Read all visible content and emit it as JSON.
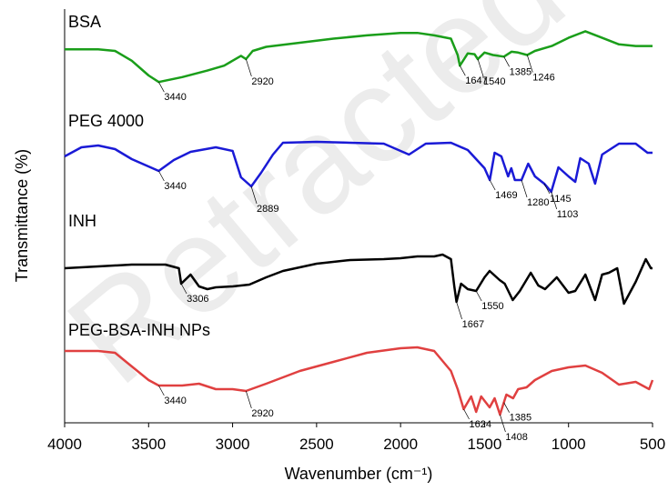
{
  "chart_data": {
    "type": "line",
    "xlabel": "Wavenumber (cm⁻¹)",
    "ylabel": "Transmittance (%)",
    "xlim": [
      4000,
      500
    ],
    "x_ticks": [
      4000,
      3500,
      3000,
      2500,
      2000,
      1500,
      1000,
      500
    ],
    "grid": false,
    "legend": "none",
    "series": [
      {
        "name": "BSA",
        "color": "#1a9e1a",
        "points": [
          [
            4000,
            0.08
          ],
          [
            3800,
            0.08
          ],
          [
            3700,
            0.1
          ],
          [
            3600,
            0.22
          ],
          [
            3500,
            0.4
          ],
          [
            3440,
            0.48
          ],
          [
            3300,
            0.42
          ],
          [
            3150,
            0.34
          ],
          [
            3050,
            0.28
          ],
          [
            2950,
            0.16
          ],
          [
            2920,
            0.2
          ],
          [
            2880,
            0.1
          ],
          [
            2800,
            0.05
          ],
          [
            2600,
            0.0
          ],
          [
            2400,
            -0.05
          ],
          [
            2200,
            -0.09
          ],
          [
            2000,
            -0.12
          ],
          [
            1900,
            -0.12
          ],
          [
            1800,
            -0.09
          ],
          [
            1700,
            -0.05
          ],
          [
            1660,
            0.15
          ],
          [
            1647,
            0.28
          ],
          [
            1600,
            0.13
          ],
          [
            1560,
            0.14
          ],
          [
            1540,
            0.2
          ],
          [
            1500,
            0.12
          ],
          [
            1450,
            0.15
          ],
          [
            1385,
            0.17
          ],
          [
            1340,
            0.11
          ],
          [
            1300,
            0.12
          ],
          [
            1246,
            0.15
          ],
          [
            1200,
            0.1
          ],
          [
            1100,
            0.04
          ],
          [
            1000,
            -0.06
          ],
          [
            900,
            -0.14
          ],
          [
            800,
            -0.06
          ],
          [
            700,
            0.02
          ],
          [
            600,
            0.04
          ],
          [
            500,
            0.04
          ]
        ],
        "annotations": [
          {
            "x": 3440,
            "label": "3440"
          },
          {
            "x": 2920,
            "label": "2920"
          },
          {
            "x": 1647,
            "label": "1647"
          },
          {
            "x": 1540,
            "label": "1540"
          },
          {
            "x": 1385,
            "label": "1385"
          },
          {
            "x": 1246,
            "label": "1246"
          }
        ]
      },
      {
        "name": "PEG 4000",
        "color": "#1a1ad6",
        "points": [
          [
            4000,
            0.12
          ],
          [
            3900,
            0.02
          ],
          [
            3800,
            0.0
          ],
          [
            3700,
            0.04
          ],
          [
            3600,
            0.15
          ],
          [
            3440,
            0.28
          ],
          [
            3350,
            0.16
          ],
          [
            3250,
            0.07
          ],
          [
            3100,
            0.02
          ],
          [
            3000,
            0.06
          ],
          [
            2950,
            0.35
          ],
          [
            2889,
            0.45
          ],
          [
            2830,
            0.3
          ],
          [
            2760,
            0.1
          ],
          [
            2700,
            -0.03
          ],
          [
            2500,
            -0.04
          ],
          [
            2300,
            -0.03
          ],
          [
            2100,
            -0.02
          ],
          [
            1950,
            0.1
          ],
          [
            1850,
            -0.02
          ],
          [
            1700,
            -0.03
          ],
          [
            1600,
            0.05
          ],
          [
            1500,
            0.25
          ],
          [
            1469,
            0.38
          ],
          [
            1440,
            0.08
          ],
          [
            1400,
            0.12
          ],
          [
            1360,
            0.34
          ],
          [
            1341,
            0.25
          ],
          [
            1320,
            0.38
          ],
          [
            1280,
            0.38
          ],
          [
            1240,
            0.2
          ],
          [
            1200,
            0.34
          ],
          [
            1145,
            0.42
          ],
          [
            1103,
            0.51
          ],
          [
            1060,
            0.24
          ],
          [
            1000,
            0.34
          ],
          [
            960,
            0.4
          ],
          [
            930,
            0.14
          ],
          [
            880,
            0.2
          ],
          [
            842,
            0.42
          ],
          [
            800,
            0.1
          ],
          [
            700,
            -0.02
          ],
          [
            600,
            -0.02
          ],
          [
            530,
            0.08
          ],
          [
            500,
            0.08
          ]
        ],
        "annotations": [
          {
            "x": 3440,
            "label": "3440"
          },
          {
            "x": 2889,
            "label": "2889"
          },
          {
            "x": 1469,
            "label": "1469"
          },
          {
            "x": 1280,
            "label": "1280"
          },
          {
            "x": 1145,
            "label": "1145"
          },
          {
            "x": 1103,
            "label": "1103"
          }
        ]
      },
      {
        "name": "INH",
        "color": "#000000",
        "points": [
          [
            4000,
            0.05
          ],
          [
            3800,
            0.03
          ],
          [
            3600,
            0.01
          ],
          [
            3400,
            0.01
          ],
          [
            3320,
            0.05
          ],
          [
            3306,
            0.22
          ],
          [
            3250,
            0.12
          ],
          [
            3200,
            0.25
          ],
          [
            3150,
            0.28
          ],
          [
            3100,
            0.26
          ],
          [
            3000,
            0.25
          ],
          [
            2900,
            0.23
          ],
          [
            2800,
            0.15
          ],
          [
            2700,
            0.08
          ],
          [
            2500,
            0.0
          ],
          [
            2300,
            -0.04
          ],
          [
            2100,
            -0.05
          ],
          [
            2000,
            -0.06
          ],
          [
            1900,
            -0.08
          ],
          [
            1800,
            -0.08
          ],
          [
            1750,
            -0.1
          ],
          [
            1700,
            -0.05
          ],
          [
            1680,
            0.25
          ],
          [
            1667,
            0.42
          ],
          [
            1640,
            0.22
          ],
          [
            1600,
            0.28
          ],
          [
            1550,
            0.3
          ],
          [
            1500,
            0.15
          ],
          [
            1470,
            0.08
          ],
          [
            1410,
            0.18
          ],
          [
            1380,
            0.22
          ],
          [
            1332,
            0.4
          ],
          [
            1290,
            0.3
          ],
          [
            1225,
            0.1
          ],
          [
            1180,
            0.24
          ],
          [
            1140,
            0.28
          ],
          [
            1070,
            0.15
          ],
          [
            1000,
            0.32
          ],
          [
            960,
            0.3
          ],
          [
            900,
            0.12
          ],
          [
            842,
            0.4
          ],
          [
            800,
            0.12
          ],
          [
            760,
            0.1
          ],
          [
            710,
            0.05
          ],
          [
            670,
            0.44
          ],
          [
            600,
            0.2
          ],
          [
            540,
            -0.05
          ],
          [
            510,
            0.05
          ],
          [
            500,
            0.05
          ]
        ],
        "annotations": [
          {
            "x": 3306,
            "label": "3306"
          },
          {
            "x": 1667,
            "label": "1667"
          },
          {
            "x": 1550,
            "label": "1550"
          }
        ]
      },
      {
        "name": "PEG-BSA-INH NPs",
        "color": "#e04040",
        "points": [
          [
            4000,
            -0.02
          ],
          [
            3800,
            -0.02
          ],
          [
            3700,
            0.0
          ],
          [
            3600,
            0.15
          ],
          [
            3500,
            0.3
          ],
          [
            3440,
            0.36
          ],
          [
            3300,
            0.36
          ],
          [
            3200,
            0.34
          ],
          [
            3100,
            0.4
          ],
          [
            3000,
            0.4
          ],
          [
            2920,
            0.42
          ],
          [
            2800,
            0.34
          ],
          [
            2600,
            0.2
          ],
          [
            2400,
            0.1
          ],
          [
            2200,
            0.0
          ],
          [
            2000,
            -0.05
          ],
          [
            1900,
            -0.06
          ],
          [
            1800,
            -0.02
          ],
          [
            1700,
            0.2
          ],
          [
            1660,
            0.4
          ],
          [
            1624,
            0.62
          ],
          [
            1580,
            0.48
          ],
          [
            1550,
            0.65
          ],
          [
            1520,
            0.48
          ],
          [
            1470,
            0.6
          ],
          [
            1440,
            0.5
          ],
          [
            1408,
            0.68
          ],
          [
            1370,
            0.46
          ],
          [
            1330,
            0.5
          ],
          [
            1300,
            0.4
          ],
          [
            1250,
            0.38
          ],
          [
            1200,
            0.3
          ],
          [
            1100,
            0.2
          ],
          [
            1000,
            0.16
          ],
          [
            900,
            0.14
          ],
          [
            800,
            0.22
          ],
          [
            700,
            0.35
          ],
          [
            600,
            0.32
          ],
          [
            520,
            0.4
          ],
          [
            500,
            0.3
          ]
        ],
        "annotations": [
          {
            "x": 3440,
            "label": "3440"
          },
          {
            "x": 2920,
            "label": "2920"
          },
          {
            "x": 1624,
            "label": "1624"
          },
          {
            "x": 1408,
            "label": "1408"
          },
          {
            "x": 1385,
            "label": "1385"
          }
        ]
      }
    ]
  },
  "watermark": {
    "text": "Retracted",
    "color": "#dddddd"
  }
}
